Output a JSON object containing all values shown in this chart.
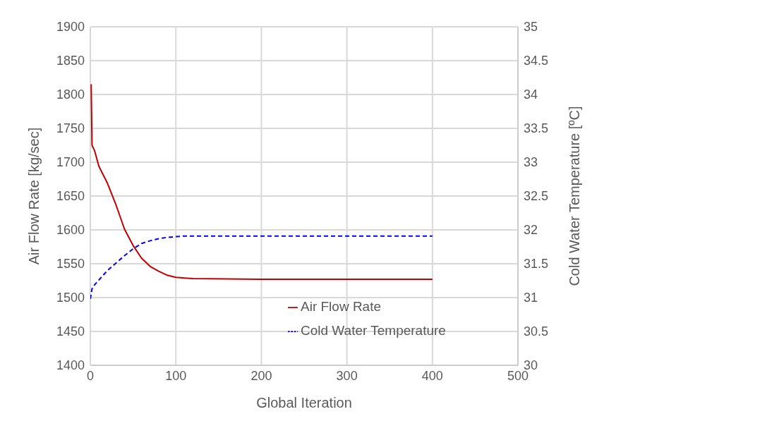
{
  "chart_data": {
    "type": "line",
    "xlabel": "Global Iteration",
    "ylabel": "Air Flow Rate [kg/sec]",
    "y2label": "Cold Water Temperature [ºC]",
    "xlim": [
      0,
      500
    ],
    "xticks": [
      0,
      100,
      200,
      300,
      400,
      500
    ],
    "ylim": [
      1400,
      1900
    ],
    "yticks": [
      1400,
      1450,
      1500,
      1550,
      1600,
      1650,
      1700,
      1750,
      1800,
      1850,
      1900
    ],
    "y2lim": [
      30,
      35
    ],
    "y2ticks": [
      30,
      30.5,
      31,
      31.5,
      32,
      32.5,
      33,
      33.5,
      34,
      34.5,
      35
    ],
    "grid": true,
    "legend": "bottom right",
    "marker": "none",
    "series": [
      {
        "name": "Air Flow Rate",
        "color": "#c00000",
        "line_style": "solid",
        "x": [
          1,
          2,
          5,
          10,
          20,
          30,
          40,
          50,
          60,
          70,
          80,
          90,
          100,
          110,
          120,
          200,
          300,
          400
        ],
        "values": [
          1815,
          1725,
          1717,
          1694,
          1669,
          1637,
          1601,
          1577,
          1558,
          1546,
          1539,
          1533,
          1530,
          1529,
          1528,
          1527,
          1527,
          1527
        ]
      },
      {
        "name": "Cold Water Temperature",
        "color": "#0000ff",
        "line_style": "dashed",
        "axis": "y2",
        "x": [
          0,
          2,
          3,
          10,
          20,
          30,
          40,
          50,
          60,
          70,
          80,
          90,
          100,
          110,
          120,
          200,
          300,
          400
        ],
        "values": [
          30.98,
          31.13,
          31.16,
          31.26,
          31.4,
          31.51,
          31.62,
          31.72,
          31.8,
          31.84,
          31.87,
          31.89,
          31.9,
          31.91,
          31.91,
          31.91,
          31.91,
          31.91
        ]
      }
    ]
  }
}
